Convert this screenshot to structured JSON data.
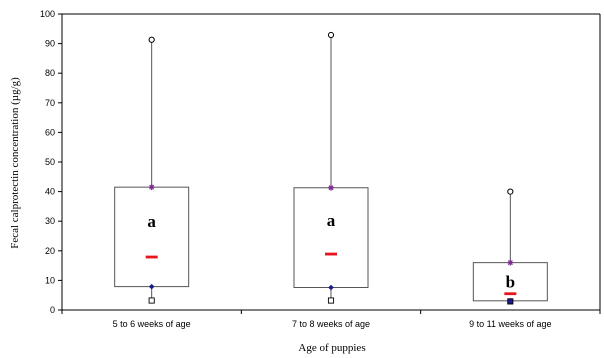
{
  "chart_data": {
    "type": "box",
    "xlabel": "Age of puppies",
    "ylabel": "Fecal calprotectin concentration (µg/g)",
    "ylim": [
      0,
      100
    ],
    "yticks": [
      0,
      10,
      20,
      30,
      40,
      50,
      60,
      70,
      80,
      90,
      100
    ],
    "grid": false,
    "legend": "none",
    "categories": [
      "5 to 6 weeks of age",
      "7 to 8 weeks of age",
      "9 to 11 weeks of age"
    ],
    "boxes": [
      {
        "category": "5 to 6 weeks of age",
        "min": 3.2,
        "q1": 7.9,
        "median": 17.9,
        "q3": 41.5,
        "max": 91.3,
        "letter": "a"
      },
      {
        "category": "7 to 8 weeks of age",
        "min": 3.2,
        "q1": 7.6,
        "median": 18.9,
        "q3": 41.3,
        "max": 92.9,
        "letter": "a"
      },
      {
        "category": "9 to 11 weeks of age",
        "min": 2.9,
        "q1": 3.1,
        "median": 5.5,
        "q3": 16.0,
        "max": 40.0,
        "letter": "b"
      }
    ],
    "colors": {
      "median": "#e8141b",
      "q3_marker": "#7b2d8e",
      "q1_marker": "#1a1a8c",
      "axis": "#000000"
    }
  }
}
